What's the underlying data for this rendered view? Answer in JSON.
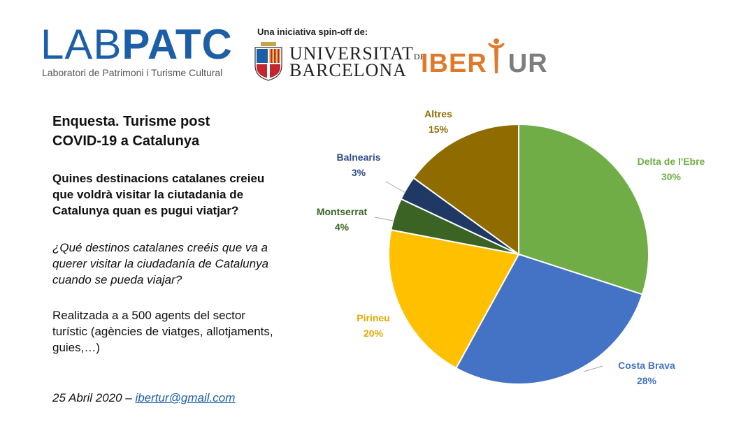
{
  "header": {
    "lab_logo_thin": "LAB",
    "lab_logo_bold": "PATC",
    "lab_subtitle": "Laboratori de Patrimoni i Turisme Cultural",
    "spinoff_label": "Una iniciativa spin-off de:",
    "ub_line1": "UNIVERSITAT",
    "ub_line1_de": "DE",
    "ub_line2": "BARCELONA",
    "ibertur_part1": "IBER",
    "ibertur_part2": "UR"
  },
  "left_panel": {
    "title": "Enquesta. Turisme post COVID-19 a Catalunya",
    "question_ca": "Quines destinacions catalanes creieu que voldrà visitar la ciutadania de Catalunya quan es pugui viatjar?",
    "question_es": "¿Qué destinos catalanes creéis que va a querer visitar la ciudadanía de Catalunya cuando se pueda viajar?",
    "methodology": "Realitzada a a 500 agents del sector turístic (agències de viatges, allotjaments, guies,…)",
    "footer_date": "25 Abril 2020 – ",
    "footer_email": "ibertur@gmail.com"
  },
  "colors": {
    "lab_blue": "#1d5fa7",
    "ibertur_orange": "#e07a2b",
    "ibertur_gray": "#7d7d7d"
  },
  "chart_data": {
    "type": "pie",
    "title": "",
    "slices": [
      {
        "label": "Delta de l'Ebre",
        "value": 30,
        "display": "30%",
        "color": "#70ad47",
        "label_color": "#70ad47"
      },
      {
        "label": "Costa Brava",
        "value": 28,
        "display": "28%",
        "color": "#4472c4",
        "label_color": "#4472c4"
      },
      {
        "label": "Pirineu",
        "value": 20,
        "display": "20%",
        "color": "#ffc000",
        "label_color": "#e3a800"
      },
      {
        "label": "Montserrat",
        "value": 4,
        "display": "4%",
        "color": "#3b6424",
        "label_color": "#3b6424"
      },
      {
        "label": "Balnearis",
        "value": 3,
        "display": "3%",
        "color": "#203864",
        "label_color": "#2f4b8a"
      },
      {
        "label": "Altres",
        "value": 15,
        "display": "15%",
        "color": "#8f6b00",
        "label_color": "#8f6b00"
      }
    ],
    "start_angle_deg": 0,
    "direction": "clockwise"
  }
}
